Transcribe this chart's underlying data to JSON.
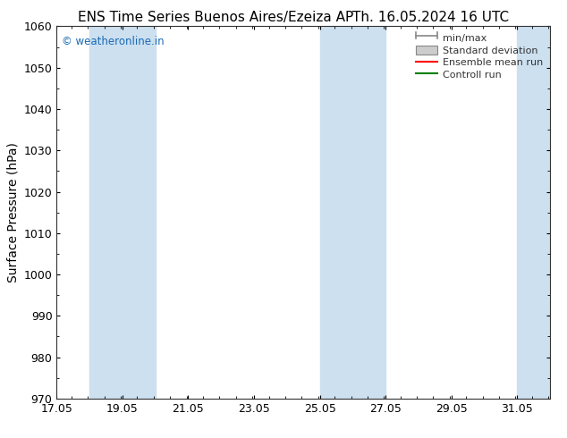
{
  "title_left": "ENS Time Series Buenos Aires/Ezeiza AP",
  "title_right": "Th. 16.05.2024 16 UTC",
  "ylabel": "Surface Pressure (hPa)",
  "ylim": [
    970,
    1060
  ],
  "yticks": [
    970,
    980,
    990,
    1000,
    1010,
    1020,
    1030,
    1040,
    1050,
    1060
  ],
  "xlim_start": 17.05,
  "xlim_end": 32.05,
  "xtick_labels": [
    "17.05",
    "19.05",
    "21.05",
    "23.05",
    "25.05",
    "27.05",
    "29.05",
    "31.05"
  ],
  "xtick_positions": [
    17.05,
    19.05,
    21.05,
    23.05,
    25.05,
    27.05,
    29.05,
    31.05
  ],
  "shaded_bands": [
    {
      "xmin": 18.05,
      "xmax": 20.05
    },
    {
      "xmin": 25.05,
      "xmax": 27.05
    },
    {
      "xmin": 31.05,
      "xmax": 32.5
    }
  ],
  "shaded_color": "#cce0f0",
  "watermark": "© weatheronline.in",
  "watermark_color": "#1a6ab5",
  "background_color": "#ffffff",
  "title_fontsize": 11,
  "axis_label_fontsize": 10,
  "tick_fontsize": 9,
  "legend_fontsize": 8,
  "legend_label_color": "#333333",
  "minmax_color": "#888888",
  "stddev_fill_color": "#cccccc",
  "stddev_edge_color": "#888888",
  "ensemble_color": "#ff0000",
  "control_color": "#008000"
}
